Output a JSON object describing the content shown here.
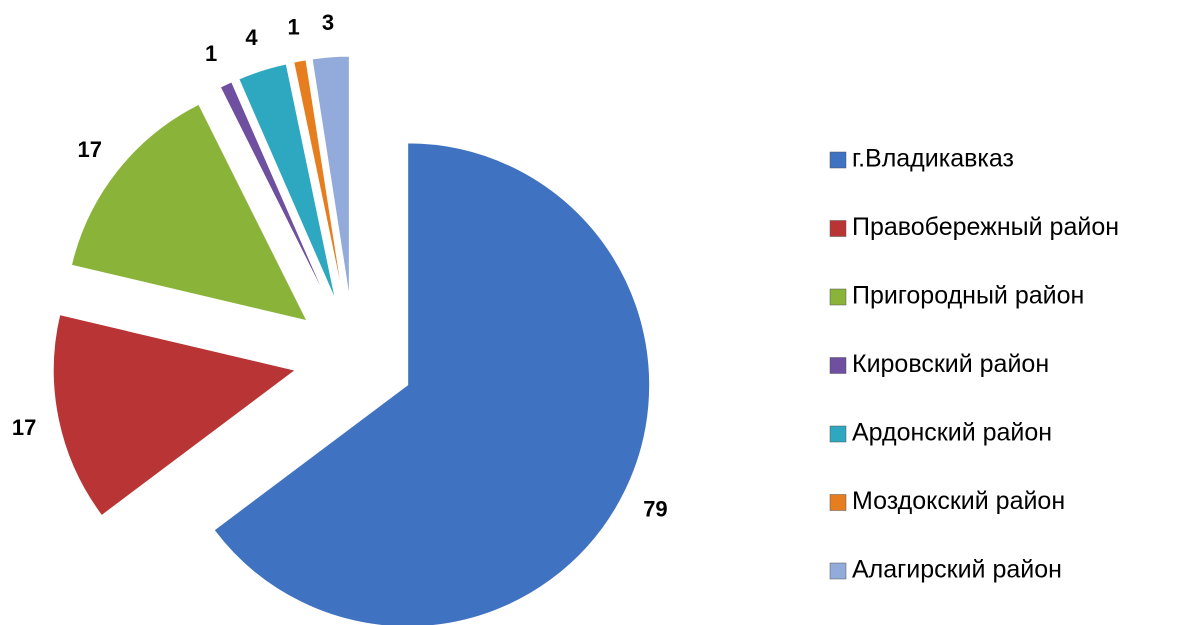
{
  "chart_data": {
    "type": "pie",
    "categories": [
      "г.Владикавказ",
      "Правобережный район",
      "Пригородный район",
      "Кировский район",
      "Ардонский район",
      "Моздокский район",
      "Алагирский район"
    ],
    "values": [
      79,
      17,
      17,
      1,
      4,
      1,
      3
    ],
    "colors": [
      "#3f72c0",
      "#b93434",
      "#8ab33a",
      "#6e4fa0",
      "#2ea7c0",
      "#e67e1f",
      "#93abda"
    ],
    "legend": "right"
  }
}
